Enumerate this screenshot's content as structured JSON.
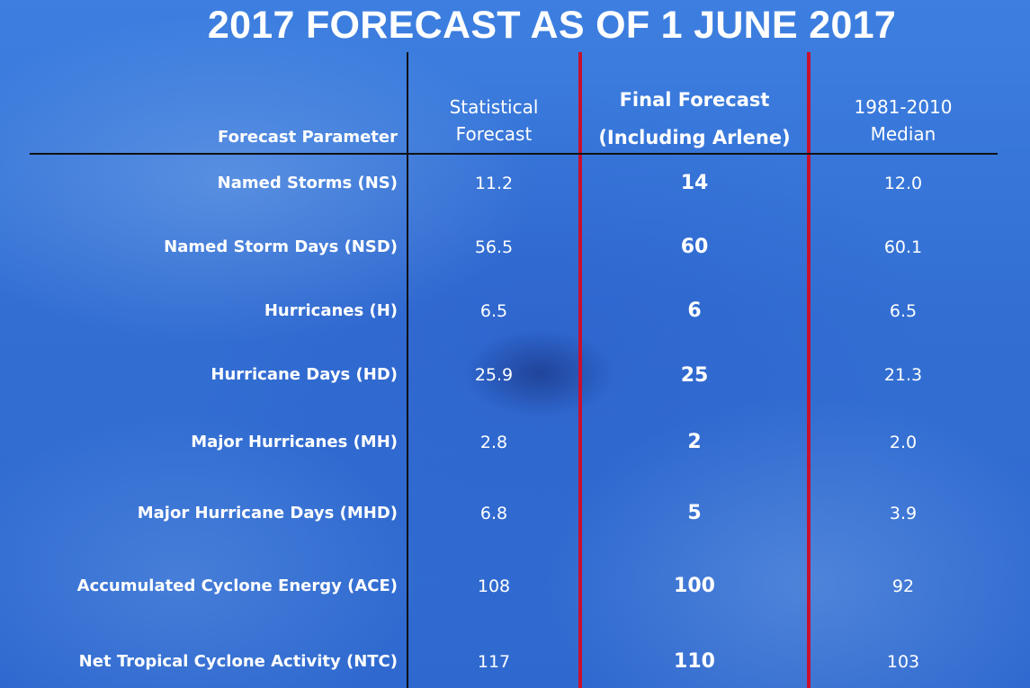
{
  "title": "2017 FORECAST AS OF 1 JUNE 2017",
  "headers": {
    "parameter": "Forecast Parameter",
    "statistical_line1": "Statistical",
    "statistical_line2": "Forecast",
    "final_line1": "Final Forecast",
    "final_line2": "(Including Arlene)",
    "median_line1": "1981-2010",
    "median_line2": "Median"
  },
  "rows": [
    {
      "parameter": "Named Storms (NS)",
      "statistical": "11.2",
      "final": "14",
      "median": "12.0"
    },
    {
      "parameter": "Named Storm Days (NSD)",
      "statistical": "56.5",
      "final": "60",
      "median": "60.1"
    },
    {
      "parameter": "Hurricanes (H)",
      "statistical": "6.5",
      "final": "6",
      "median": "6.5"
    },
    {
      "parameter": "Hurricane Days (HD)",
      "statistical": "25.9",
      "final": "25",
      "median": "21.3"
    },
    {
      "parameter": "Major Hurricanes (MH)",
      "statistical": "2.8",
      "final": "2",
      "median": "2.0"
    },
    {
      "parameter": "Major Hurricane Days (MHD)",
      "statistical": "6.8",
      "final": "5",
      "median": "3.9"
    },
    {
      "parameter": "Accumulated Cyclone Energy (ACE)",
      "statistical": "108",
      "final": "100",
      "median": "92"
    },
    {
      "parameter": "Net Tropical Cyclone Activity (NTC)",
      "statistical": "117",
      "final": "110",
      "median": "103"
    }
  ],
  "colors": {
    "background": "#336fd3",
    "text": "#ffffff",
    "divider": "#111111",
    "highlight_border": "#c8102e"
  }
}
